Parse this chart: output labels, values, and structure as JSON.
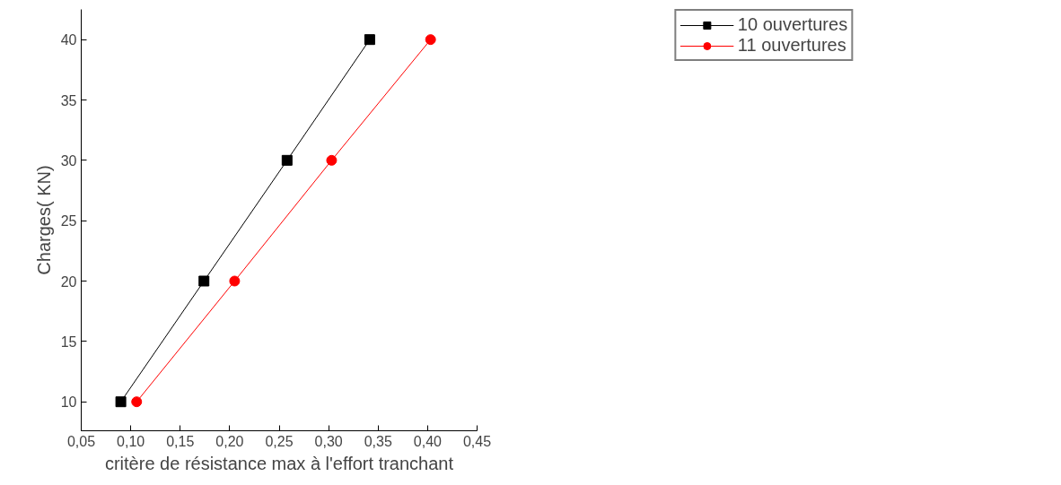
{
  "chart_data": {
    "type": "line",
    "xlabel": "critère de résistance max à l'effort tranchant",
    "ylabel": "Charges( KN)",
    "xlim": [
      0.05,
      0.45
    ],
    "xticks": [
      {
        "value": 0.05,
        "label": "0,05"
      },
      {
        "value": 0.1,
        "label": "0,10"
      },
      {
        "value": 0.15,
        "label": "0,15"
      },
      {
        "value": 0.2,
        "label": "0,20"
      },
      {
        "value": 0.25,
        "label": "0,25"
      },
      {
        "value": 0.3,
        "label": "0,30"
      },
      {
        "value": 0.35,
        "label": "0,35"
      },
      {
        "value": 0.4,
        "label": "0,40"
      },
      {
        "value": 0.45,
        "label": "0,45"
      }
    ],
    "ylim": [
      7.6,
      42.5
    ],
    "yticks": [
      10,
      15,
      20,
      25,
      30,
      35,
      40
    ],
    "grid": false,
    "legend": "top right",
    "series": [
      {
        "name": "10 ouvertures",
        "color": "#000000",
        "marker": "square",
        "x": [
          0.09,
          0.174,
          0.258,
          0.3415
        ],
        "values": [
          10,
          20,
          30,
          40
        ]
      },
      {
        "name": "11 ouvertures",
        "color": "#ff0000",
        "marker": "circle",
        "x": [
          0.106,
          0.205,
          0.303,
          0.403
        ],
        "values": [
          10,
          20,
          30,
          40
        ]
      }
    ]
  }
}
